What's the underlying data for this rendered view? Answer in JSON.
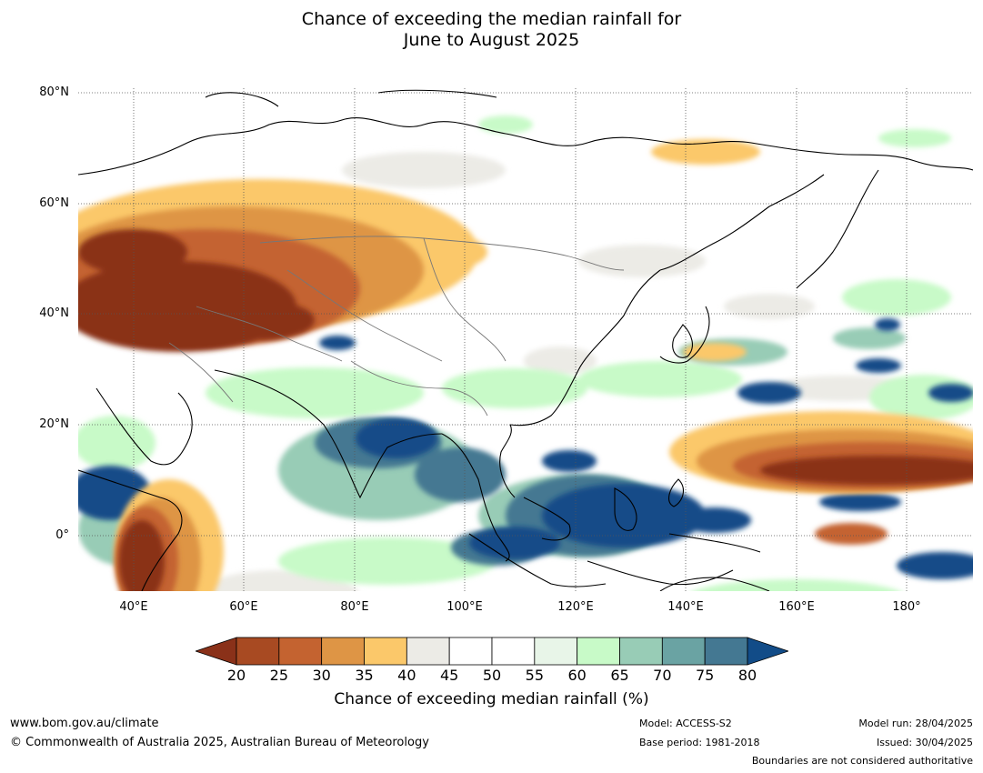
{
  "title_line1": "Chance of exceeding the median rainfall for",
  "title_line2": "June to August 2025",
  "map": {
    "lat_labels": [
      "80°N",
      "60°N",
      "40°N",
      "20°N",
      "0°"
    ],
    "lon_labels": [
      "40°E",
      "60°E",
      "80°E",
      "100°E",
      "120°E",
      "140°E",
      "160°E",
      "180°"
    ],
    "extent": {
      "lon_min": 30,
      "lon_max": 192,
      "lat_min": -10,
      "lat_max": 81
    }
  },
  "legend": {
    "title": "Chance of exceeding median rainfall (%)",
    "ticks": [
      "20",
      "25",
      "30",
      "35",
      "40",
      "45",
      "50",
      "55",
      "60",
      "65",
      "70",
      "75",
      "80"
    ],
    "colors": [
      "#8a3119",
      "#a84a22",
      "#c46330",
      "#de9545",
      "#fbc86a",
      "#ecebe6",
      "#ffffff",
      "#ffffff",
      "#e8f5e8",
      "#c8fac8",
      "#98ccb6",
      "#6aa3a3",
      "#447892",
      "#124c88"
    ]
  },
  "footer": {
    "url": "www.bom.gov.au/climate",
    "copyright": "© Commonwealth of Australia 2025, Australian Bureau of Meteorology",
    "model": "Model: ACCESS-S2",
    "base_period": "Base period: 1981-2018",
    "model_run": "Model run: 28/04/2025",
    "issued": "Issued: 30/04/2025",
    "boundaries": "Boundaries are not considered authoritative"
  }
}
